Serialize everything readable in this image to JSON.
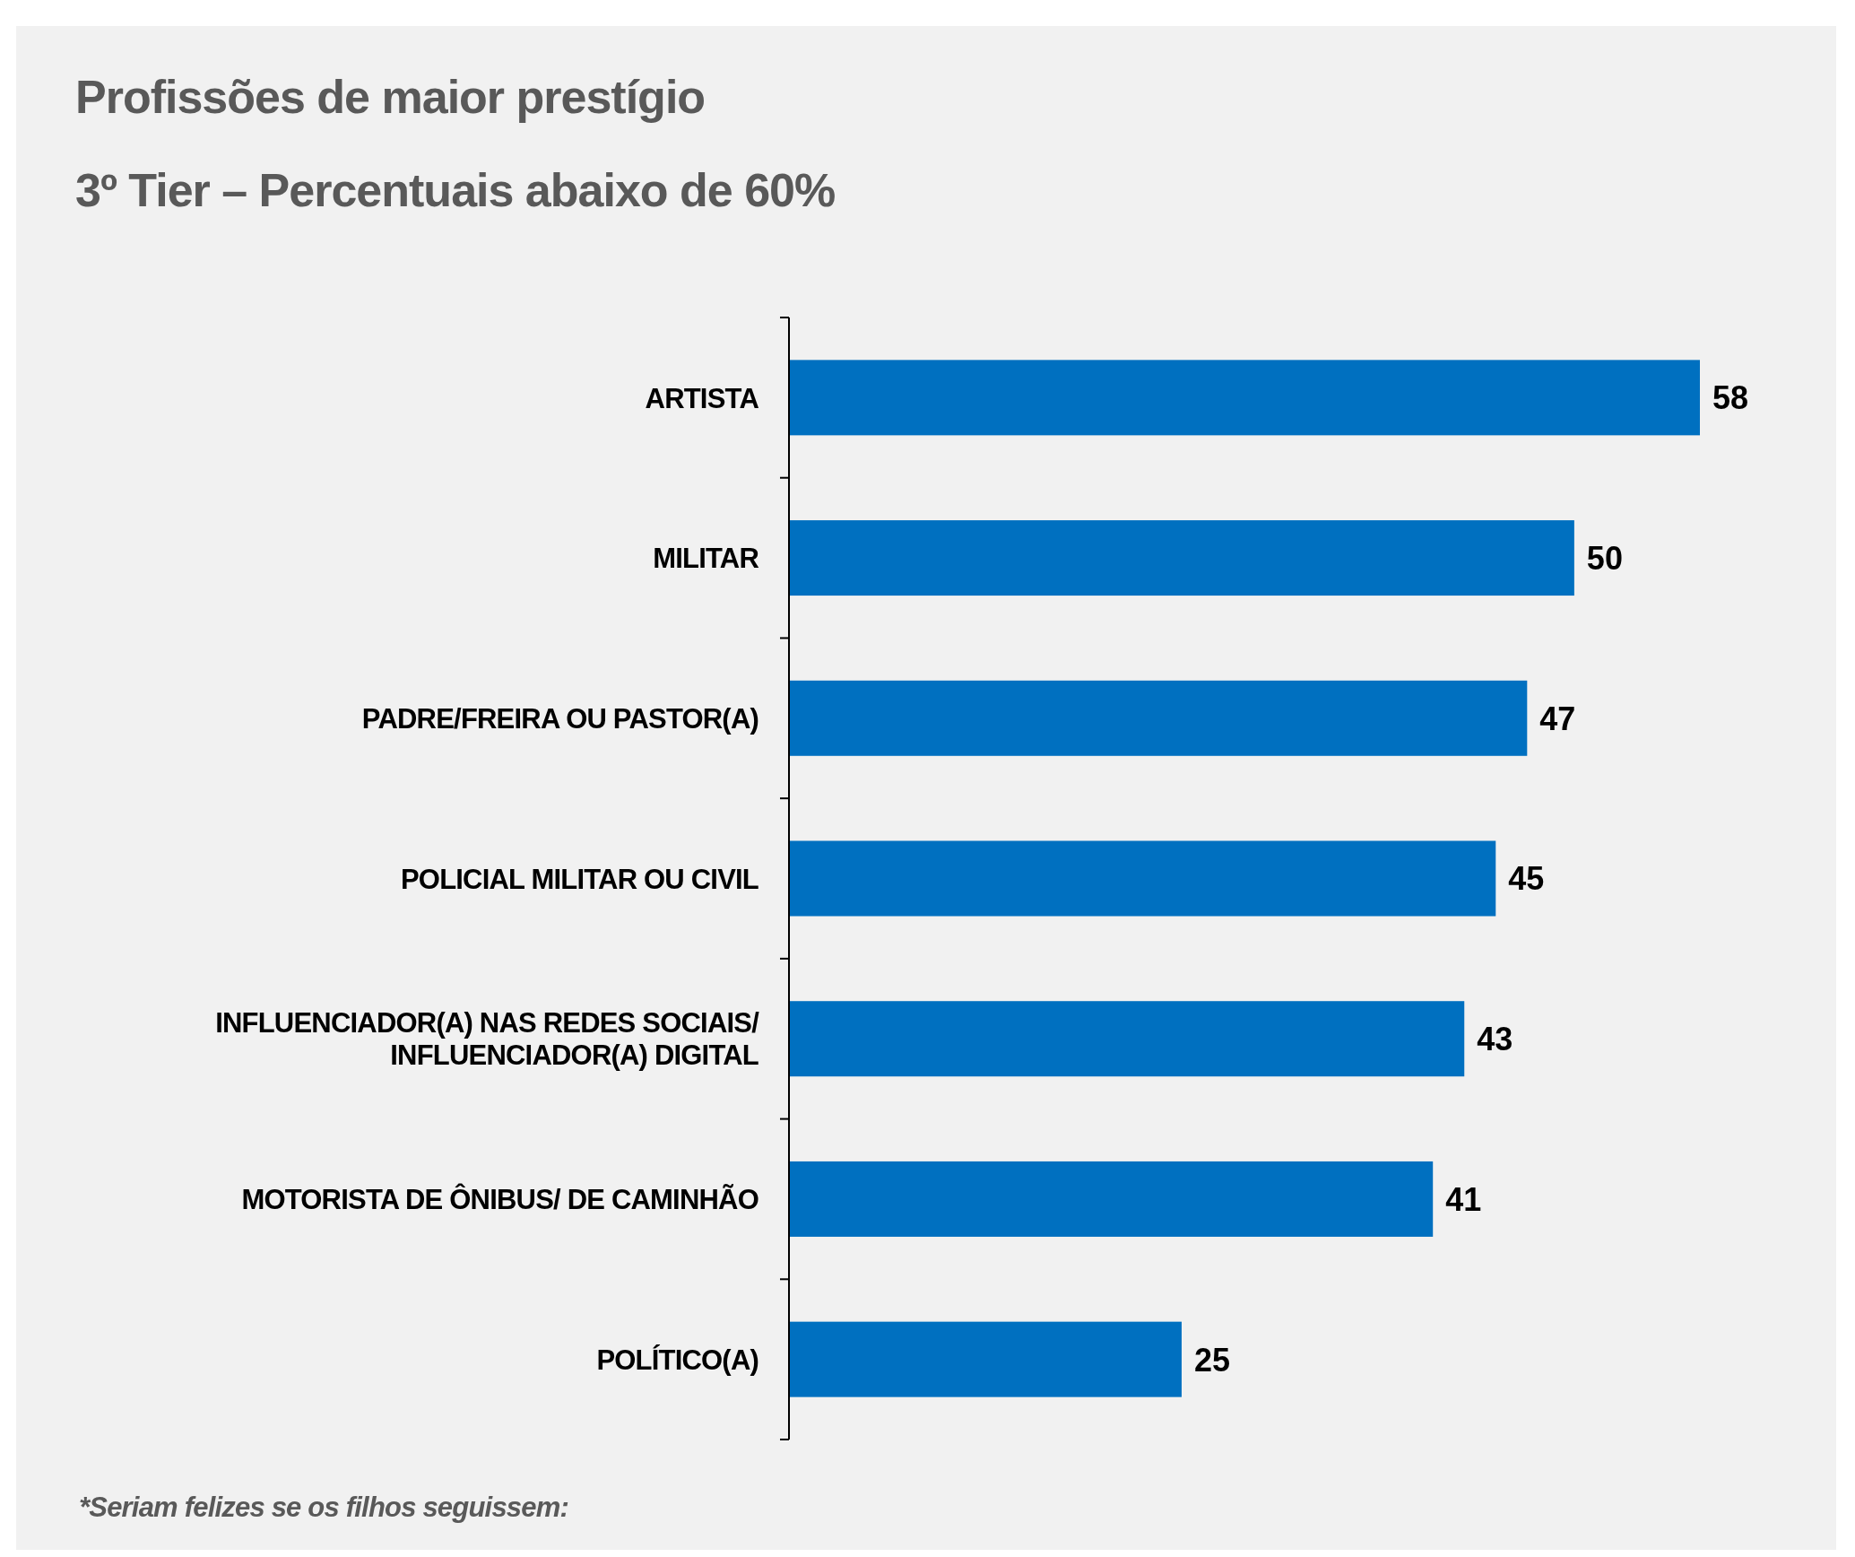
{
  "chart_data": {
    "type": "bar",
    "orientation": "horizontal",
    "title": "Profissões de maior prestígio",
    "subtitle": "3º Tier – Percentuais abaixo de 60%",
    "categories": [
      "ARTISTA",
      "MILITAR",
      "PADRE/FREIRA OU PASTOR(A)",
      "POLICIAL MILITAR OU CIVIL",
      "INFLUENCIADOR(A) NAS REDES SOCIAIS/ INFLUENCIADOR(A) DIGITAL",
      "MOTORISTA DE ÔNIBUS/ DE CAMINHÃO",
      "POLÍTICO(A)"
    ],
    "values": [
      58,
      50,
      47,
      45,
      43,
      41,
      25
    ],
    "color": "#0070c0",
    "data_labels": true,
    "annotations": [
      "*Seriam felizes se os filhos seguissem:"
    ]
  }
}
